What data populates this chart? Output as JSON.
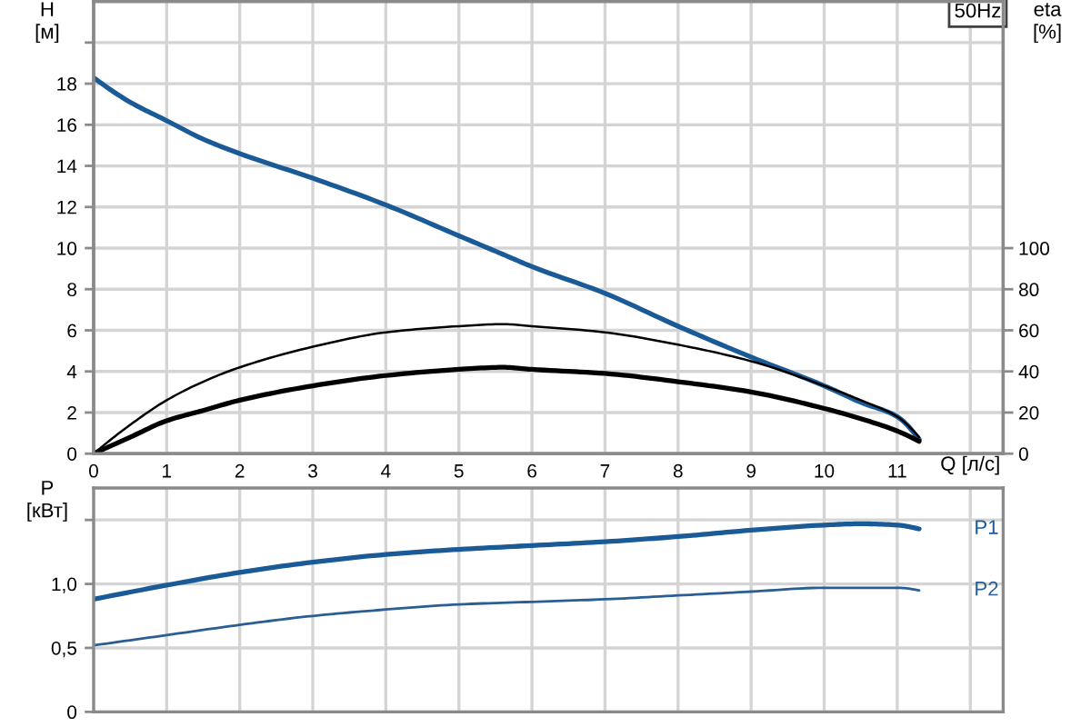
{
  "chart_data": [
    {
      "type": "line",
      "title": "50Hz",
      "xlabel": "Q [л/с]",
      "ylabel": "H\n[м]",
      "y2label": "eta\n[%]",
      "x": [
        0,
        0.5,
        1,
        1.5,
        2,
        3,
        4,
        5,
        5.6,
        6,
        7,
        8,
        9,
        10,
        10.5,
        11,
        11.3
      ],
      "series": [
        {
          "color": "#1a5a96",
          "values": [
            18.3,
            17.1,
            16.2,
            15.3,
            14.6,
            13.4,
            12.1,
            10.6,
            9.7,
            9.1,
            7.8,
            6.2,
            4.7,
            3.3,
            2.5,
            1.8,
            0.7
          ]
        },
        {
          "color": "#000000",
          "axis": "y2",
          "values": [
            0,
            14,
            26,
            35,
            42,
            52,
            59,
            62,
            63,
            62,
            59,
            53,
            45,
            33,
            26,
            18,
            8
          ]
        },
        {
          "color": "#000000",
          "axis": "y2",
          "values": [
            0,
            8,
            16,
            21,
            26,
            33,
            38,
            41,
            42,
            41,
            39,
            35,
            30,
            22,
            17,
            11,
            6
          ]
        }
      ],
      "xlim": [
        0,
        12.45
      ],
      "xticks": [
        0,
        1,
        2,
        3,
        4,
        5,
        6,
        7,
        8,
        9,
        10,
        11,
        {
          "value": 12,
          "label": null
        }
      ],
      "ylim": [
        0,
        22
      ],
      "yticks": [
        0,
        2,
        4,
        6,
        8,
        10,
        12,
        14,
        16,
        18,
        {
          "value": 20,
          "label": null
        }
      ],
      "y2lim": [
        0,
        220
      ],
      "y2ticks": [
        0,
        20,
        40,
        60,
        80,
        100
      ],
      "grid": true
    },
    {
      "type": "line",
      "ylabel": "P\n[кВт]",
      "x": [
        0,
        1,
        2,
        3,
        4,
        5,
        6,
        7,
        8,
        9,
        10,
        10.5,
        11,
        11.3
      ],
      "series": [
        {
          "name": "P1",
          "color": "#1a5a96",
          "values": [
            0.88,
            0.99,
            1.09,
            1.17,
            1.23,
            1.27,
            1.3,
            1.33,
            1.37,
            1.42,
            1.46,
            1.47,
            1.46,
            1.43
          ]
        },
        {
          "name": "P2",
          "color": "#2b5f94",
          "values": [
            0.52,
            0.6,
            0.68,
            0.75,
            0.8,
            0.84,
            0.86,
            0.88,
            0.91,
            0.94,
            0.97,
            0.97,
            0.97,
            0.95
          ]
        }
      ],
      "xlim": [
        0,
        12.45
      ],
      "xticks": [
        0,
        1,
        2,
        3,
        4,
        5,
        6,
        7,
        8,
        9,
        10,
        11,
        {
          "value": 12,
          "label": null
        }
      ],
      "ylim": [
        0,
        1.75
      ],
      "yticks": [
        0,
        {
          "value": 0.5,
          "label": "0,5"
        },
        {
          "value": 1,
          "label": "1,0"
        },
        {
          "value": 1.5,
          "label": null
        }
      ],
      "grid": true,
      "tick_labels": "y"
    }
  ]
}
